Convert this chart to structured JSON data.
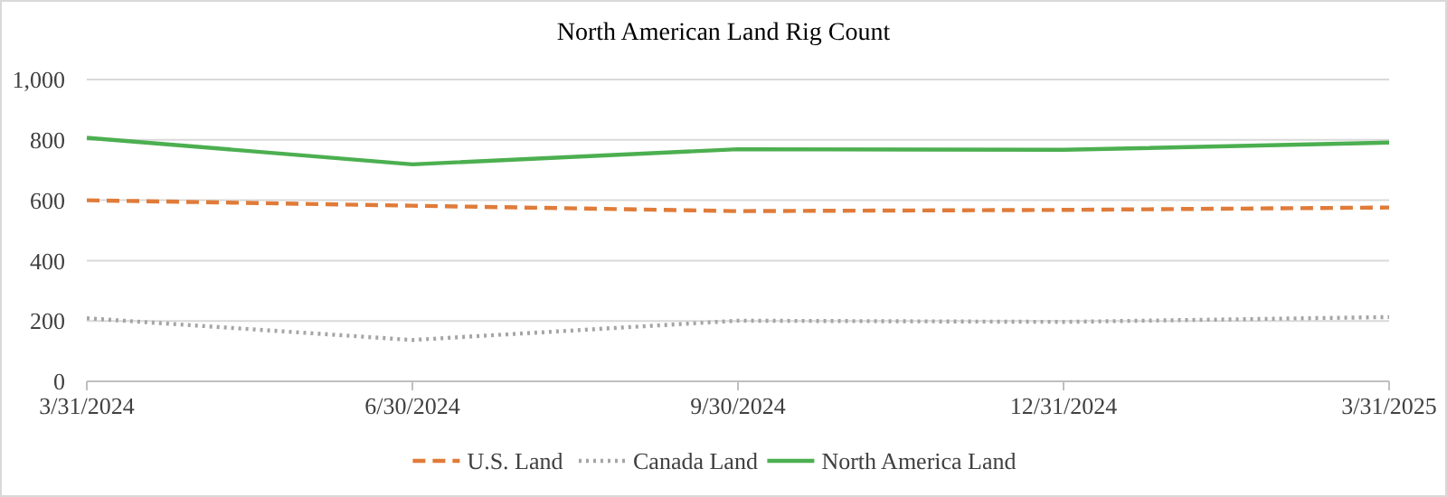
{
  "chart_data": {
    "type": "line",
    "title": "North American Land Rig Count",
    "categories": [
      "3/31/2024",
      "6/30/2024",
      "9/30/2024",
      "12/31/2024",
      "3/31/2025"
    ],
    "series": [
      {
        "name": "U.S. Land",
        "color": "#e07b39",
        "line_style": "dashed",
        "values": [
          600,
          582,
          564,
          568,
          576
        ]
      },
      {
        "name": "Canada Land",
        "color": "#a5a5a5",
        "line_style": "dotted",
        "values": [
          209,
          137,
          201,
          197,
          213
        ]
      },
      {
        "name": "North America Land",
        "color": "#4caf50",
        "line_style": "solid",
        "values": [
          807,
          719,
          769,
          767,
          791
        ]
      }
    ],
    "ylim": [
      0,
      1000
    ],
    "yticks": [
      0,
      200,
      400,
      600,
      {
        "value": 800,
        "label": "800"
      },
      {
        "value": 1000,
        "label": "1,000"
      }
    ],
    "grid": "y",
    "legend": "bottom",
    "marker": "none"
  }
}
